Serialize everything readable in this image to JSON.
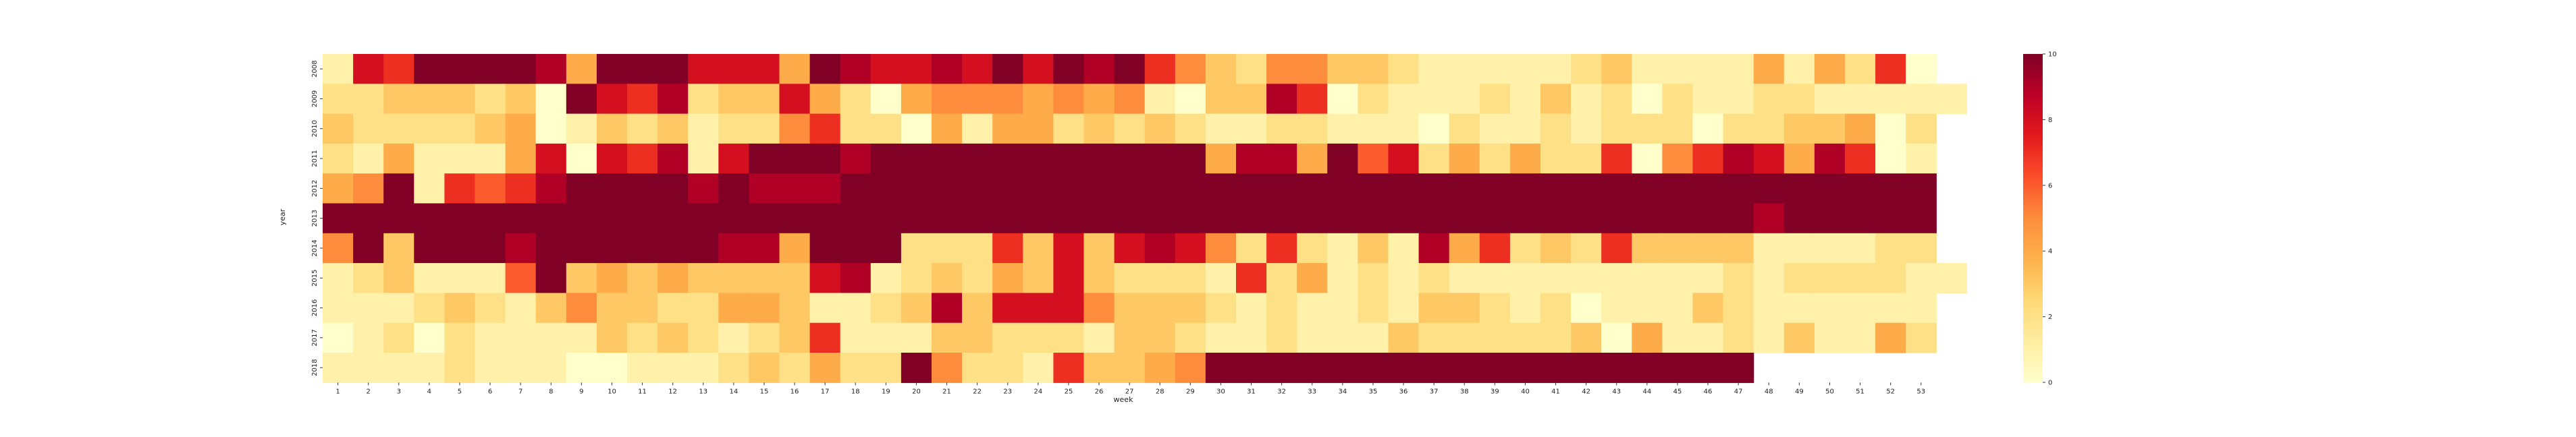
{
  "chart_data": {
    "type": "heatmap",
    "title": "",
    "xlabel": "week",
    "ylabel": "year",
    "x_categories": [
      "1",
      "2",
      "3",
      "4",
      "5",
      "6",
      "7",
      "8",
      "9",
      "10",
      "11",
      "12",
      "13",
      "14",
      "15",
      "16",
      "17",
      "18",
      "19",
      "20",
      "21",
      "22",
      "23",
      "24",
      "25",
      "26",
      "27",
      "28",
      "29",
      "30",
      "31",
      "32",
      "33",
      "34",
      "35",
      "36",
      "37",
      "38",
      "39",
      "40",
      "41",
      "42",
      "43",
      "44",
      "45",
      "46",
      "47",
      "48",
      "49",
      "50",
      "51",
      "52",
      "53"
    ],
    "y_categories": [
      "2008",
      "2009",
      "2010",
      "2011",
      "2012",
      "2013",
      "2014",
      "2015",
      "2016",
      "2017",
      "2018"
    ],
    "colorbar": {
      "range": [
        0,
        10
      ],
      "ticks": [
        "0",
        "2",
        "4",
        "6",
        "8",
        "10"
      ],
      "colormap": "YlOrRd",
      "colors": [
        "#ffffcc",
        "#ffeda0",
        "#fed976",
        "#feb24c",
        "#fd8d3c",
        "#fc4e2a",
        "#e31a1c",
        "#bd0026",
        "#800026"
      ]
    },
    "grid": false,
    "values": [
      [
        1,
        8,
        7,
        10,
        10,
        10,
        10,
        9,
        4,
        10,
        10,
        10,
        8,
        8,
        8,
        4,
        10,
        9,
        8,
        8,
        9,
        8,
        10,
        8,
        10,
        9,
        10,
        7,
        5,
        3,
        2,
        5,
        5,
        3,
        3,
        2,
        1,
        1,
        1,
        1,
        1,
        2,
        3,
        1,
        1,
        1,
        1,
        4,
        1,
        4,
        2,
        7,
        0,
        null
      ],
      [
        2,
        2,
        3,
        3,
        3,
        2,
        3,
        0,
        10,
        8,
        7,
        9,
        2,
        3,
        3,
        8,
        4,
        2,
        0,
        4,
        5,
        5,
        5,
        4,
        5,
        4,
        5,
        1,
        0,
        3,
        3,
        9,
        7,
        0,
        2,
        1,
        1,
        1,
        2,
        1,
        3,
        1,
        2,
        0,
        2,
        1,
        1,
        2,
        2,
        1,
        1,
        1,
        1,
        1
      ],
      [
        3,
        2,
        2,
        2,
        2,
        3,
        4,
        0,
        1,
        3,
        2,
        3,
        1,
        2,
        2,
        5,
        7,
        2,
        2,
        0,
        4,
        1,
        4,
        4,
        2,
        3,
        2,
        3,
        2,
        1,
        1,
        2,
        2,
        1,
        1,
        1,
        0,
        2,
        1,
        1,
        2,
        1,
        2,
        2,
        2,
        0,
        2,
        2,
        3,
        3,
        4,
        0,
        2,
        null
      ],
      [
        2,
        1,
        4,
        1,
        1,
        1,
        4,
        8,
        0,
        8,
        7,
        9,
        1,
        8,
        10,
        10,
        10,
        9,
        10,
        10,
        10,
        10,
        10,
        10,
        10,
        10,
        10,
        10,
        10,
        4,
        9,
        9,
        4,
        10,
        6,
        8,
        2,
        4,
        2,
        4,
        2,
        2,
        7,
        0,
        5,
        7,
        9,
        8,
        4,
        9,
        7,
        0,
        1,
        null
      ],
      [
        4,
        5,
        10,
        1,
        7,
        6,
        7,
        9,
        10,
        10,
        10,
        10,
        9,
        10,
        9,
        9,
        9,
        10,
        10,
        10,
        10,
        10,
        10,
        10,
        10,
        10,
        10,
        10,
        10,
        10,
        10,
        10,
        10,
        10,
        10,
        10,
        10,
        10,
        10,
        10,
        10,
        10,
        10,
        10,
        10,
        10,
        10,
        10,
        10,
        10,
        10,
        10,
        10,
        null
      ],
      [
        10,
        10,
        10,
        10,
        10,
        10,
        10,
        10,
        10,
        10,
        10,
        10,
        10,
        10,
        10,
        10,
        10,
        10,
        10,
        10,
        10,
        10,
        10,
        10,
        10,
        10,
        10,
        10,
        10,
        10,
        10,
        10,
        10,
        10,
        10,
        10,
        10,
        10,
        10,
        10,
        10,
        10,
        10,
        10,
        10,
        10,
        10,
        9,
        10,
        10,
        10,
        10,
        10,
        null
      ],
      [
        5,
        10,
        3,
        10,
        10,
        10,
        9,
        10,
        10,
        10,
        10,
        10,
        10,
        9,
        9,
        4,
        10,
        10,
        10,
        2,
        2,
        2,
        7,
        3,
        8,
        3,
        8,
        9,
        8,
        5,
        2,
        7,
        2,
        1,
        3,
        1,
        9,
        4,
        7,
        2,
        3,
        2,
        7,
        3,
        3,
        3,
        3,
        1,
        1,
        1,
        1,
        2,
        2,
        null
      ],
      [
        1,
        2,
        3,
        1,
        1,
        1,
        6,
        10,
        3,
        4,
        3,
        4,
        3,
        3,
        3,
        3,
        8,
        9,
        1,
        2,
        3,
        2,
        4,
        3,
        8,
        3,
        2,
        2,
        2,
        1,
        7,
        2,
        4,
        1,
        2,
        1,
        2,
        1,
        1,
        1,
        1,
        1,
        1,
        1,
        1,
        1,
        2,
        1,
        2,
        2,
        2,
        2,
        1,
        1
      ],
      [
        1,
        1,
        1,
        2,
        3,
        2,
        1,
        3,
        5,
        3,
        3,
        2,
        2,
        4,
        4,
        3,
        1,
        1,
        2,
        3,
        9,
        3,
        8,
        8,
        8,
        5,
        3,
        3,
        3,
        2,
        1,
        2,
        1,
        1,
        2,
        1,
        3,
        3,
        2,
        1,
        2,
        0,
        1,
        1,
        1,
        3,
        2,
        1,
        1,
        1,
        1,
        1,
        1,
        null
      ],
      [
        0,
        1,
        2,
        0,
        2,
        1,
        1,
        1,
        1,
        3,
        2,
        3,
        2,
        1,
        2,
        3,
        7,
        1,
        1,
        1,
        3,
        3,
        2,
        2,
        2,
        1,
        3,
        3,
        2,
        1,
        1,
        2,
        1,
        1,
        1,
        3,
        2,
        2,
        2,
        2,
        2,
        3,
        0,
        4,
        1,
        1,
        2,
        1,
        3,
        1,
        1,
        4,
        2,
        null
      ],
      [
        1,
        1,
        1,
        1,
        2,
        1,
        1,
        1,
        0,
        0,
        1,
        1,
        1,
        2,
        3,
        2,
        4,
        2,
        2,
        10,
        5,
        2,
        2,
        1,
        7,
        3,
        3,
        4,
        5,
        10,
        10,
        10,
        10,
        10,
        10,
        10,
        10,
        10,
        10,
        10,
        10,
        10,
        10,
        10,
        10,
        10,
        10,
        null,
        null,
        null,
        null,
        null,
        null,
        null
      ]
    ]
  }
}
